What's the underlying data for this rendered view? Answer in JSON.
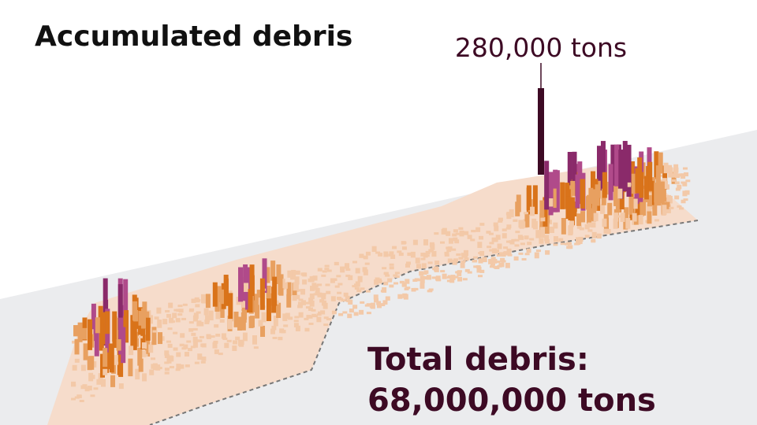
{
  "title": "Accumulated debris",
  "peak_label": "280,000 tons",
  "total": {
    "line1": "Total debris:",
    "line2": "68,000,000 tons"
  }
}
